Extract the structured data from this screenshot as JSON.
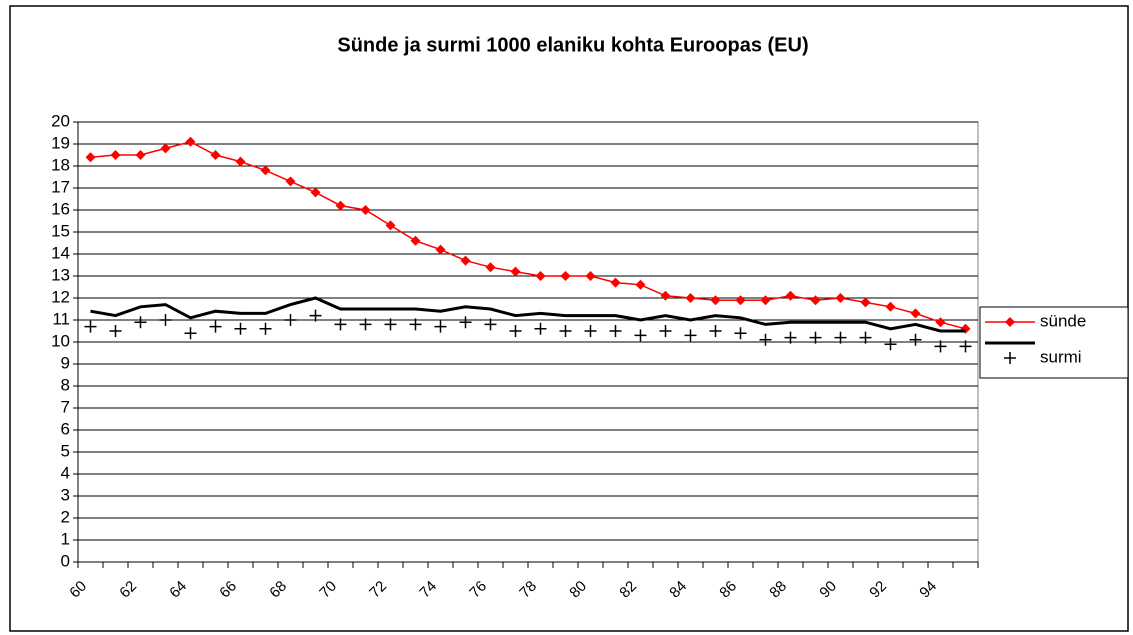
{
  "chart_data": {
    "type": "line",
    "title": "Sünde ja surmi 1000 elaniku kohta Euroopas (EU)",
    "categories": [
      "60",
      null,
      "62",
      null,
      "64",
      null,
      "66",
      null,
      "68",
      null,
      "70",
      null,
      "72",
      null,
      "74",
      null,
      "76",
      null,
      "78",
      null,
      "80",
      null,
      "82",
      null,
      "84",
      null,
      "86",
      null,
      "88",
      null,
      "90",
      null,
      "92",
      null,
      "94",
      null
    ],
    "series": [
      {
        "name": "sünde",
        "color": "#ff0000",
        "line": true,
        "marker": "diamond",
        "values": [
          18.4,
          18.5,
          18.5,
          18.8,
          19.1,
          18.5,
          18.2,
          17.8,
          17.3,
          16.8,
          16.2,
          16.0,
          15.3,
          14.6,
          14.2,
          13.7,
          13.4,
          13.2,
          13.0,
          13.0,
          13.0,
          12.7,
          12.6,
          12.1,
          12.0,
          11.9,
          11.9,
          11.9,
          12.1,
          11.9,
          12.0,
          11.8,
          11.6,
          11.3,
          10.9,
          10.6
        ]
      },
      {
        "color": "#000000",
        "line": true,
        "marker": null,
        "values": [
          11.4,
          11.2,
          11.6,
          11.7,
          11.1,
          11.4,
          11.3,
          11.3,
          11.7,
          12.0,
          11.5,
          11.5,
          11.5,
          11.5,
          11.4,
          11.6,
          11.5,
          11.2,
          11.3,
          11.2,
          11.2,
          11.2,
          11.0,
          11.2,
          11.0,
          11.2,
          11.1,
          10.8,
          10.9,
          10.9,
          10.9,
          10.9,
          10.6,
          10.8,
          10.5,
          10.5
        ]
      },
      {
        "name": "surmi",
        "color": "#000000",
        "line": false,
        "marker": "plus",
        "values": [
          10.7,
          10.5,
          10.9,
          11.0,
          10.4,
          10.7,
          10.6,
          10.6,
          11.0,
          11.2,
          10.8,
          10.8,
          10.8,
          10.8,
          10.7,
          10.9,
          10.8,
          10.5,
          10.6,
          10.5,
          10.5,
          10.5,
          10.3,
          10.5,
          10.3,
          10.5,
          10.4,
          10.1,
          10.2,
          10.2,
          10.2,
          10.2,
          9.9,
          10.1,
          9.8,
          9.8
        ]
      }
    ],
    "ylim": [
      0,
      20
    ],
    "yticks": [
      0,
      1,
      2,
      3,
      4,
      5,
      6,
      7,
      8,
      9,
      10,
      11,
      12,
      13,
      14,
      15,
      16,
      17,
      18,
      19,
      20
    ],
    "grid": true,
    "legend": "right"
  }
}
